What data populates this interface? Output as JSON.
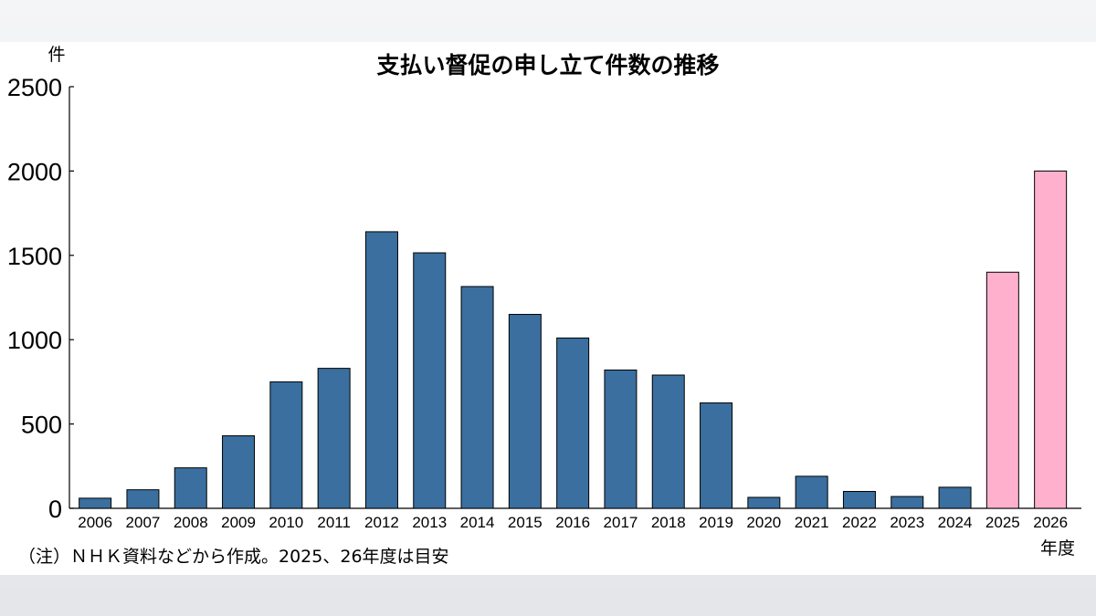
{
  "chart_data": {
    "type": "bar",
    "title": "支払い督促の申し立て件数の推移",
    "ylabel": "件",
    "xlabel": "年度",
    "note": "（注）ＮＨＫ資料などから作成。2025、26年度は目安",
    "ylim": [
      0,
      2500
    ],
    "yticks": [
      0,
      500,
      1000,
      1500,
      2000,
      2500
    ],
    "categories": [
      "2006",
      "2007",
      "2008",
      "2009",
      "2010",
      "2011",
      "2012",
      "2013",
      "2014",
      "2015",
      "2016",
      "2017",
      "2018",
      "2019",
      "2020",
      "2021",
      "2022",
      "2023",
      "2024",
      "2025",
      "2026"
    ],
    "values": [
      60,
      110,
      240,
      430,
      750,
      830,
      1640,
      1515,
      1315,
      1150,
      1010,
      820,
      790,
      625,
      65,
      190,
      100,
      70,
      125,
      1400,
      2000
    ],
    "colors": {
      "actual": "#3a6f9f",
      "estimate": "#ffb0cc"
    },
    "estimate_categories": [
      "2025",
      "2026"
    ],
    "grid": false,
    "legend": "none"
  }
}
